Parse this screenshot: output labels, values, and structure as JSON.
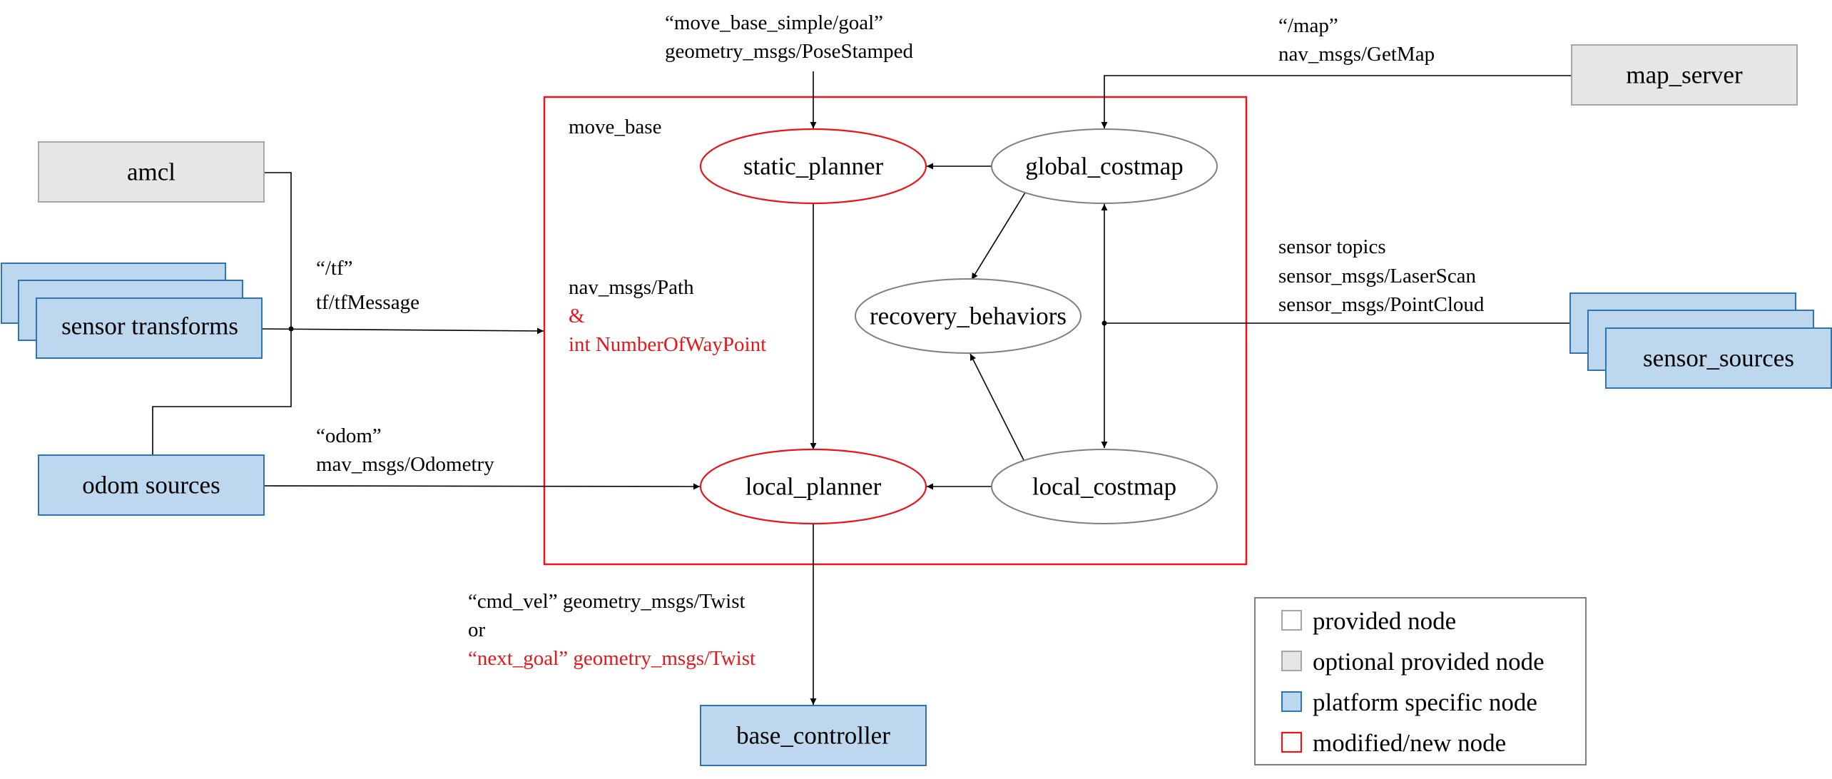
{
  "nodes": {
    "amcl": "amcl",
    "sensor_transforms": "sensor transforms",
    "odom_sources": "odom sources",
    "move_base": "move_base",
    "static_planner": "static_planner",
    "global_costmap": "global_costmap",
    "recovery_behaviors": "recovery_behaviors",
    "local_planner": "local_planner",
    "local_costmap": "local_costmap",
    "map_server": "map_server",
    "sensor_sources": "sensor_sources",
    "base_controller": "base_controller"
  },
  "messages": {
    "goal_topic": "“move_base_simple/goal”",
    "goal_type": "geometry_msgs/PoseStamped",
    "map_topic": "“/map”",
    "map_type": "nav_msgs/GetMap",
    "tf_topic": "“/tf”",
    "tf_type": "tf/tfMessage",
    "path_type": "nav_msgs/Path",
    "path_amp": "&",
    "path_extra": "int NumberOfWayPoint",
    "sensor_heading": "sensor topics",
    "sensor_laser": "sensor_msgs/LaserScan",
    "sensor_cloud": "sensor_msgs/PointCloud",
    "odom_topic": "“odom”",
    "odom_type": "mav_msgs/Odometry",
    "cmd_line": "“cmd_vel” geometry_msgs/Twist",
    "cmd_or": "or",
    "next_goal_line": "“next_goal” geometry_msgs/Twist"
  },
  "legend": {
    "provided": "provided node",
    "optional": "optional provided node",
    "platform": "platform specific node",
    "modified": "modified/new node"
  },
  "colors": {
    "provided_stroke": "#888888",
    "optional_fill": "#e6e6e6",
    "platform_fill": "#bdd7ee",
    "platform_stroke": "#2e75b6",
    "modified_stroke": "#e8151b"
  }
}
